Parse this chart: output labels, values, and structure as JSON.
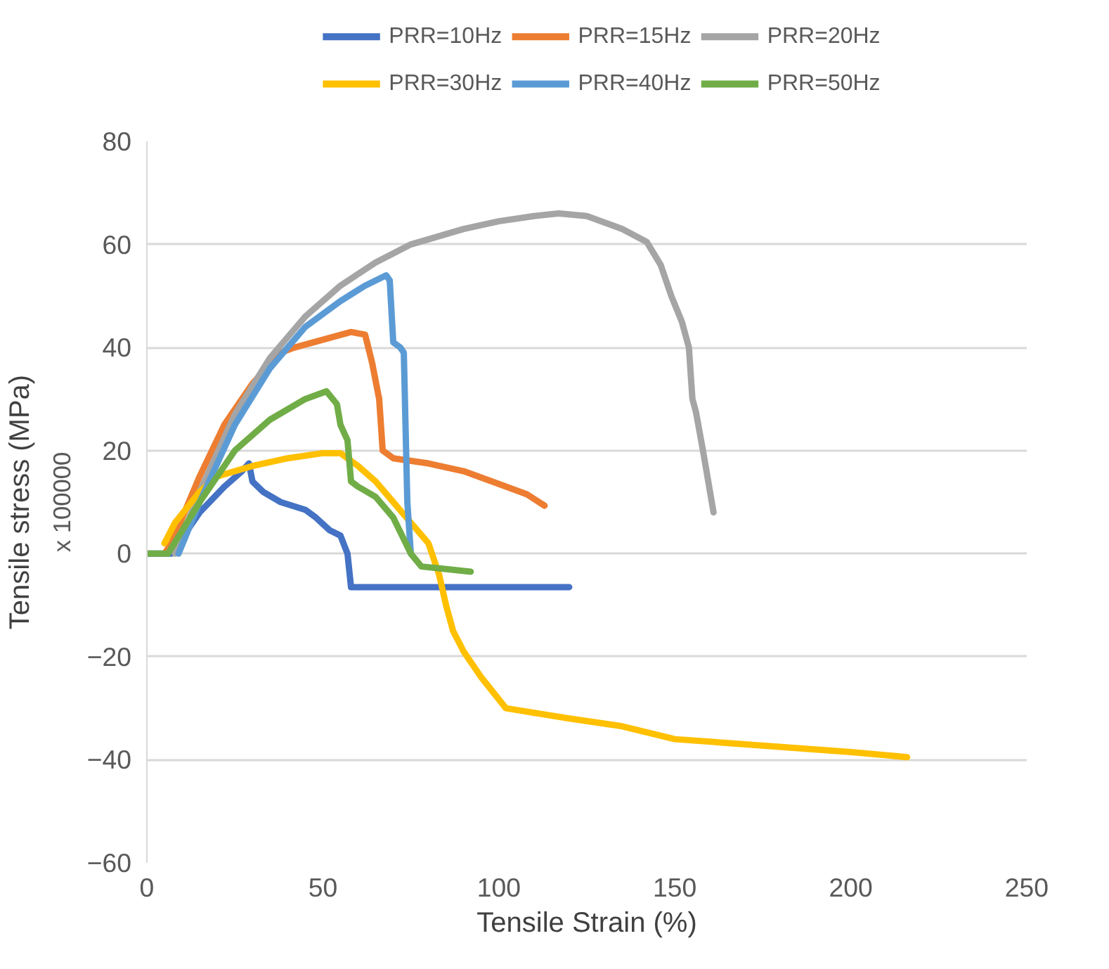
{
  "chart_data": {
    "type": "line",
    "xlabel": "Tensile Strain (%)",
    "ylabel": "Tensile stress (MPa)",
    "annotations": [
      "x 100000"
    ],
    "xlim": [
      0,
      250
    ],
    "ylim": [
      -60,
      80
    ],
    "xticks": [
      0,
      50,
      100,
      150,
      200,
      250
    ],
    "yticks": [
      -60,
      -40,
      -20,
      0,
      20,
      40,
      60,
      80
    ],
    "grid": "y",
    "legend": "top",
    "marker": "none",
    "line_style": "solid",
    "series": [
      {
        "name": "PRR=10Hz",
        "color": "#4472c4",
        "x": [
          0,
          7,
          15,
          22,
          27,
          29,
          30,
          33,
          38,
          45,
          48,
          52,
          55,
          57,
          58,
          80,
          120
        ],
        "values": [
          0,
          0,
          8,
          13,
          16,
          17.5,
          14,
          12,
          10,
          8.5,
          7,
          4.5,
          3.5,
          0,
          -6.5,
          -6.5,
          -6.5
        ]
      },
      {
        "name": "PRR=15Hz",
        "color": "#ed7d31",
        "x": [
          5,
          7,
          15,
          22,
          30,
          38,
          42,
          50,
          58,
          62,
          64,
          66,
          67,
          70,
          80,
          90,
          100,
          108,
          113
        ],
        "values": [
          0,
          2,
          15,
          25,
          33,
          39,
          40,
          41.5,
          43,
          42.5,
          37,
          30,
          20,
          18.5,
          17.5,
          16,
          13.5,
          11.5,
          9.3
        ]
      },
      {
        "name": "PRR=20Hz",
        "color": "#a5a5a5",
        "x": [
          8,
          15,
          25,
          35,
          45,
          55,
          65,
          75,
          90,
          100,
          110,
          117,
          125,
          135,
          142,
          146,
          149,
          152,
          154,
          155,
          156,
          158,
          160,
          161
        ],
        "values": [
          0,
          12,
          27,
          38,
          46,
          52,
          56.5,
          60,
          63,
          64.5,
          65.5,
          66,
          65.5,
          63,
          60.5,
          56,
          50,
          45,
          40,
          30,
          27.5,
          20,
          12,
          8
        ]
      },
      {
        "name": "PRR=30Hz",
        "color": "#ffc000",
        "x": [
          5,
          8,
          15,
          20,
          30,
          40,
          50,
          55,
          60,
          65,
          70,
          75,
          80,
          83,
          85,
          87,
          90,
          95,
          102,
          120,
          135,
          150,
          170,
          200,
          216
        ],
        "values": [
          2,
          6,
          12,
          15,
          17,
          18.5,
          19.5,
          19.5,
          17,
          14,
          10,
          6,
          2,
          -4,
          -10,
          -15,
          -19,
          -24,
          -30,
          -32,
          -33.5,
          -36,
          -37,
          -38.5,
          -39.5
        ]
      },
      {
        "name": "PRR=40Hz",
        "color": "#5b9bd5",
        "x": [
          9,
          15,
          25,
          35,
          45,
          55,
          62,
          68,
          69,
          70,
          72,
          73,
          74,
          75
        ],
        "values": [
          0,
          10,
          25,
          36,
          44,
          49,
          52,
          54,
          53,
          41,
          40,
          39,
          10,
          0
        ]
      },
      {
        "name": "PRR=50Hz",
        "color": "#70ad47",
        "x": [
          0,
          6,
          15,
          25,
          35,
          45,
          51,
          54,
          55,
          57,
          58,
          60,
          65,
          70,
          75,
          78,
          85,
          92
        ],
        "values": [
          0,
          0,
          10,
          20,
          26,
          30,
          31.5,
          29,
          25,
          22,
          14,
          13,
          11,
          7,
          0,
          -2.5,
          -3,
          -3.5
        ]
      }
    ]
  }
}
